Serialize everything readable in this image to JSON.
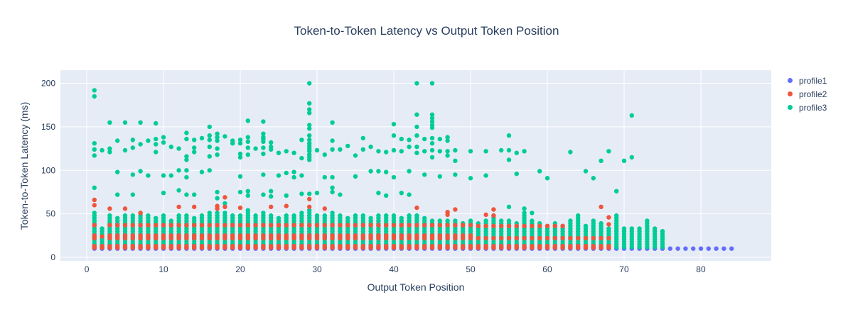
{
  "chart_data": {
    "type": "scatter",
    "title": "Token-to-Token Latency vs Output Token Position",
    "xlabel": "Output Token Position",
    "ylabel": "Token-to-Token Latency (ms)",
    "x_ticks": [
      0,
      10,
      20,
      30,
      40,
      50,
      60,
      70,
      80
    ],
    "y_ticks": [
      0,
      50,
      100,
      150,
      200
    ],
    "x_range": [
      -3.43,
      89.17
    ],
    "y_range": [
      -4.06,
      215.1
    ],
    "grid": true,
    "legend_position": "right",
    "marker_radius_px": 3.2,
    "colors": {
      "page_background": "#ffffff",
      "plot_background": "#e5ecf6",
      "grid": "#ffffff",
      "text": "#2a3f5f"
    },
    "series": [
      {
        "name": "profile1",
        "color": "#636efa",
        "points_rule": {
          "x_from": 1,
          "x_to": 84,
          "y": 10
        },
        "points": []
      },
      {
        "name": "profile2",
        "color": "#ef553b",
        "columns": {
          "x_from": 1,
          "x_to": 68,
          "pattern_default": [
            11,
            13,
            22,
            25,
            37
          ],
          "pattern_x51_62": [
            11,
            13,
            22,
            36
          ],
          "pattern_x63_68": [
            11,
            13,
            22
          ],
          "pattern_x2": [
            11,
            13,
            24
          ]
        },
        "points": [
          [
            1,
            66
          ],
          [
            1,
            60
          ],
          [
            3,
            56
          ],
          [
            5,
            56
          ],
          [
            7,
            51
          ],
          [
            12,
            58
          ],
          [
            14,
            58
          ],
          [
            17,
            59
          ],
          [
            17,
            56
          ],
          [
            18,
            69
          ],
          [
            18,
            58
          ],
          [
            20,
            57
          ],
          [
            24,
            58
          ],
          [
            26,
            59
          ],
          [
            29,
            67
          ],
          [
            29,
            58
          ],
          [
            31,
            56
          ],
          [
            43,
            57
          ],
          [
            47,
            52
          ],
          [
            47,
            49
          ],
          [
            48,
            55
          ],
          [
            52,
            49
          ],
          [
            53,
            55
          ],
          [
            53,
            48
          ],
          [
            67,
            58
          ],
          [
            68,
            46
          ],
          [
            68,
            38
          ]
        ]
      },
      {
        "name": "profile3",
        "color": "#00cc96",
        "dense_columns": {
          "x_from": 1,
          "bottom": 12,
          "step": 3,
          "tops": [
            52,
            34,
            50,
            46,
            50,
            48,
            52,
            50,
            46,
            50,
            44,
            50,
            48,
            46,
            50,
            52,
            52,
            52,
            50,
            50,
            55,
            48,
            52,
            50,
            46,
            50,
            48,
            52,
            55,
            50,
            48,
            52,
            50,
            46,
            50,
            48,
            46,
            50,
            48,
            50,
            46,
            48,
            50,
            46,
            44,
            42,
            44,
            42,
            40,
            42,
            40,
            42,
            48,
            44,
            42,
            40,
            51,
            44,
            40,
            38,
            40,
            38,
            42,
            50,
            38,
            42,
            40,
            34,
            50,
            33,
            35,
            33,
            42,
            33,
            30
          ]
        },
        "points": [
          [
            1,
            192
          ],
          [
            1,
            185
          ],
          [
            3,
            155
          ],
          [
            5,
            155
          ],
          [
            7,
            155
          ],
          [
            9,
            154
          ],
          [
            16,
            150
          ],
          [
            21,
            157
          ],
          [
            23,
            156
          ],
          [
            29,
            200
          ],
          [
            29,
            177
          ],
          [
            29,
            170
          ],
          [
            29,
            166
          ],
          [
            29,
            152
          ],
          [
            29,
            148
          ],
          [
            32,
            155
          ],
          [
            40,
            153
          ],
          [
            43,
            200
          ],
          [
            43,
            164
          ],
          [
            43,
            150
          ],
          [
            45,
            200
          ],
          [
            45,
            164
          ],
          [
            45,
            160
          ],
          [
            45,
            156
          ],
          [
            45,
            152
          ],
          [
            45,
            149
          ],
          [
            71,
            163
          ],
          [
            1,
            131
          ],
          [
            1,
            124
          ],
          [
            1,
            117
          ],
          [
            2,
            123
          ],
          [
            3,
            125
          ],
          [
            3,
            121
          ],
          [
            4,
            134
          ],
          [
            5,
            123
          ],
          [
            6,
            135
          ],
          [
            6,
            126
          ],
          [
            7,
            130
          ],
          [
            8,
            134
          ],
          [
            9,
            136
          ],
          [
            9,
            130
          ],
          [
            9,
            121
          ],
          [
            10,
            138
          ],
          [
            10,
            132
          ],
          [
            11,
            127
          ],
          [
            12,
            125
          ],
          [
            13,
            143
          ],
          [
            13,
            136
          ],
          [
            13,
            116
          ],
          [
            13,
            112
          ],
          [
            14,
            135
          ],
          [
            14,
            126
          ],
          [
            14,
            121
          ],
          [
            15,
            137
          ],
          [
            16,
            140
          ],
          [
            16,
            135
          ],
          [
            16,
            127
          ],
          [
            16,
            116
          ],
          [
            17,
            142
          ],
          [
            17,
            138
          ],
          [
            17,
            134
          ],
          [
            17,
            125
          ],
          [
            17,
            118
          ],
          [
            18,
            139
          ],
          [
            19,
            134
          ],
          [
            19,
            131
          ],
          [
            20,
            135
          ],
          [
            20,
            131
          ],
          [
            20,
            119
          ],
          [
            20,
            115
          ],
          [
            21,
            138
          ],
          [
            21,
            133
          ],
          [
            21,
            126
          ],
          [
            21,
            118
          ],
          [
            22,
            125
          ],
          [
            23,
            142
          ],
          [
            23,
            138
          ],
          [
            23,
            136
          ],
          [
            23,
            133
          ],
          [
            23,
            126
          ],
          [
            23,
            119
          ],
          [
            24,
            132
          ],
          [
            24,
            127
          ],
          [
            24,
            124
          ],
          [
            25,
            120
          ],
          [
            26,
            122
          ],
          [
            27,
            120
          ],
          [
            28,
            135
          ],
          [
            28,
            114
          ],
          [
            29,
            140
          ],
          [
            29,
            135
          ],
          [
            29,
            131
          ],
          [
            29,
            128
          ],
          [
            29,
            125
          ],
          [
            29,
            122
          ],
          [
            29,
            118
          ],
          [
            29,
            115
          ],
          [
            29,
            112
          ],
          [
            30,
            123
          ],
          [
            31,
            118
          ],
          [
            32,
            134
          ],
          [
            32,
            124
          ],
          [
            33,
            124
          ],
          [
            34,
            128
          ],
          [
            35,
            117
          ],
          [
            36,
            137
          ],
          [
            36,
            124
          ],
          [
            37,
            127
          ],
          [
            38,
            122
          ],
          [
            39,
            121
          ],
          [
            40,
            140
          ],
          [
            40,
            123
          ],
          [
            41,
            136
          ],
          [
            41,
            122
          ],
          [
            42,
            135
          ],
          [
            42,
            127
          ],
          [
            43,
            140
          ],
          [
            43,
            127
          ],
          [
            43,
            120
          ],
          [
            44,
            136
          ],
          [
            44,
            122
          ],
          [
            45,
            137
          ],
          [
            45,
            131
          ],
          [
            45,
            123
          ],
          [
            45,
            115
          ],
          [
            46,
            136
          ],
          [
            46,
            122
          ],
          [
            47,
            138
          ],
          [
            47,
            134
          ],
          [
            47,
            122
          ],
          [
            47,
            117
          ],
          [
            48,
            123
          ],
          [
            48,
            111
          ],
          [
            50,
            122
          ],
          [
            52,
            122
          ],
          [
            54,
            123
          ],
          [
            55,
            140
          ],
          [
            55,
            123
          ],
          [
            55,
            112
          ],
          [
            56,
            120
          ],
          [
            57,
            122
          ],
          [
            63,
            121
          ],
          [
            67,
            111
          ],
          [
            68,
            122
          ],
          [
            70,
            111
          ],
          [
            71,
            115
          ],
          [
            4,
            98
          ],
          [
            6,
            95
          ],
          [
            7,
            99
          ],
          [
            8,
            94
          ],
          [
            10,
            94
          ],
          [
            11,
            94
          ],
          [
            12,
            100
          ],
          [
            13,
            100
          ],
          [
            13,
            92
          ],
          [
            15,
            98
          ],
          [
            16,
            100
          ],
          [
            20,
            93
          ],
          [
            23,
            95
          ],
          [
            25,
            94
          ],
          [
            26,
            97
          ],
          [
            27,
            98
          ],
          [
            27,
            92
          ],
          [
            28,
            94
          ],
          [
            31,
            92
          ],
          [
            32,
            92
          ],
          [
            35,
            93
          ],
          [
            37,
            99
          ],
          [
            38,
            99
          ],
          [
            39,
            98
          ],
          [
            40,
            92
          ],
          [
            42,
            99
          ],
          [
            44,
            95
          ],
          [
            46,
            93
          ],
          [
            48,
            95
          ],
          [
            50,
            91
          ],
          [
            52,
            94
          ],
          [
            56,
            96
          ],
          [
            59,
            99
          ],
          [
            60,
            91
          ],
          [
            65,
            99
          ],
          [
            66,
            91
          ],
          [
            1,
            80
          ],
          [
            4,
            72
          ],
          [
            6,
            72
          ],
          [
            10,
            74
          ],
          [
            12,
            77
          ],
          [
            13,
            72
          ],
          [
            14,
            72
          ],
          [
            17,
            75
          ],
          [
            17,
            68
          ],
          [
            18,
            62
          ],
          [
            20,
            75
          ],
          [
            21,
            76
          ],
          [
            21,
            71
          ],
          [
            23,
            72
          ],
          [
            24,
            76
          ],
          [
            24,
            70
          ],
          [
            26,
            71
          ],
          [
            28,
            73
          ],
          [
            29,
            73
          ],
          [
            30,
            74
          ],
          [
            32,
            80
          ],
          [
            32,
            75
          ],
          [
            33,
            72
          ],
          [
            38,
            74
          ],
          [
            39,
            71
          ],
          [
            41,
            74
          ],
          [
            42,
            72
          ],
          [
            55,
            58
          ],
          [
            57,
            56
          ],
          [
            58,
            51
          ],
          [
            69,
            76
          ]
        ]
      }
    ]
  }
}
